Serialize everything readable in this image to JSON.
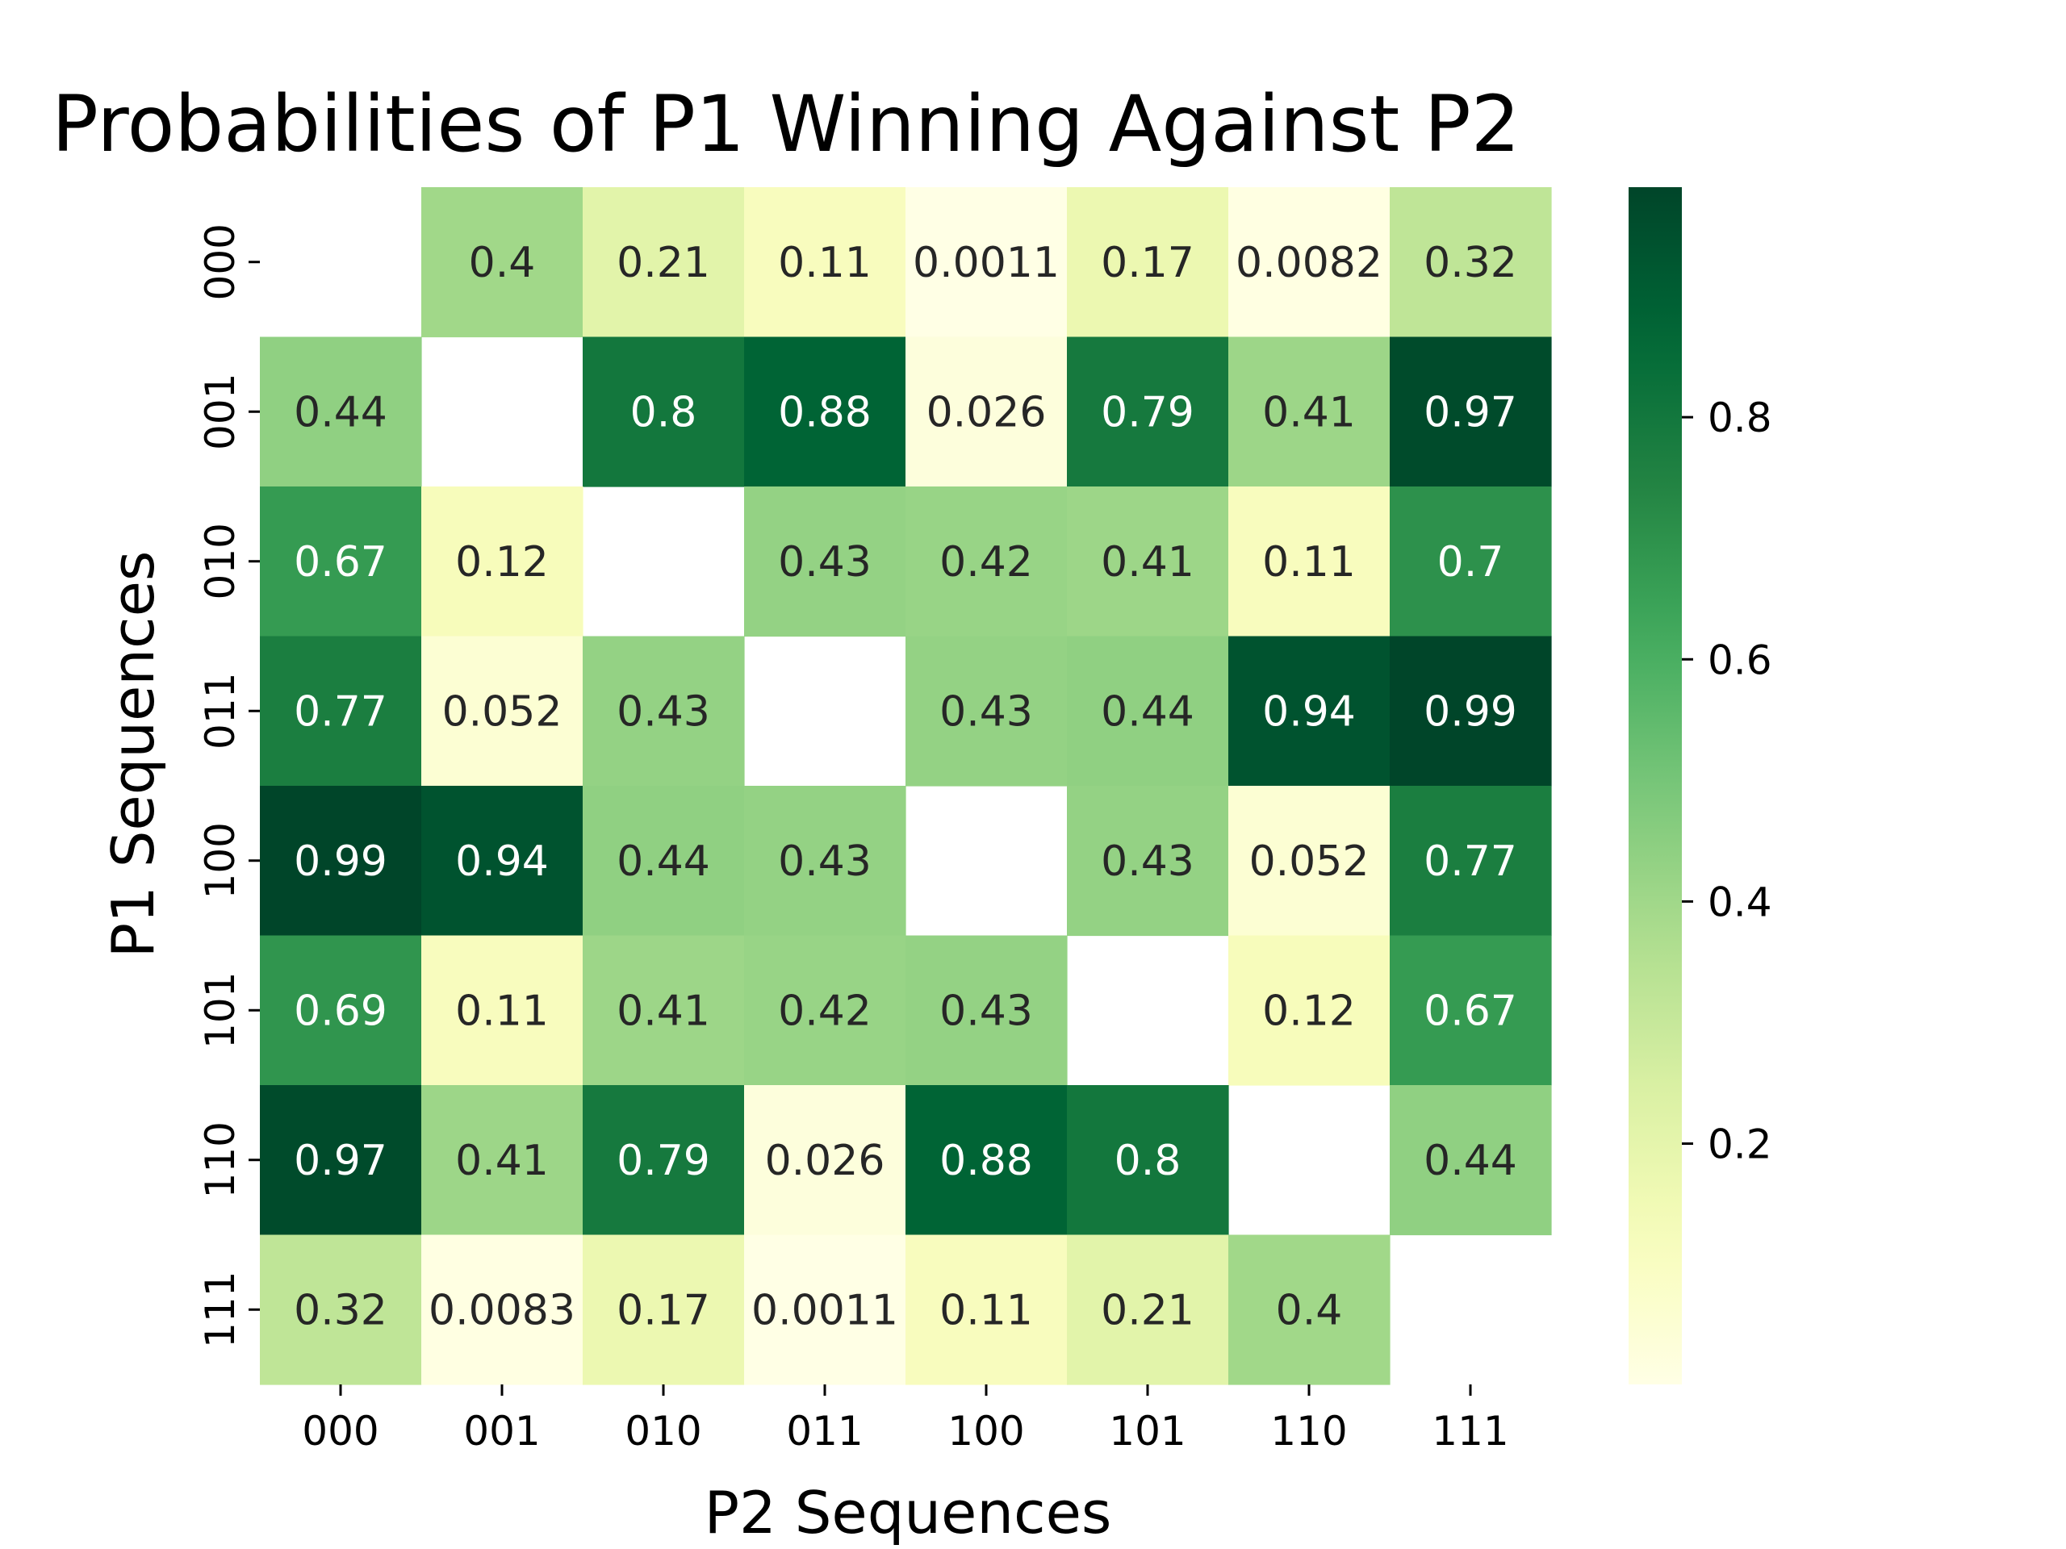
{
  "chart_data": {
    "type": "heatmap",
    "title": "Probabilities of P1 Winning Against P2",
    "xlabel": "P2 Sequences",
    "ylabel": "P1 Sequences",
    "x_categories": [
      "000",
      "001",
      "010",
      "011",
      "100",
      "101",
      "110",
      "111"
    ],
    "y_categories": [
      "000",
      "001",
      "010",
      "011",
      "100",
      "101",
      "110",
      "111"
    ],
    "values": [
      [
        null,
        0.4,
        0.21,
        0.11,
        0.0011,
        0.17,
        0.0082,
        0.32
      ],
      [
        0.44,
        null,
        0.8,
        0.88,
        0.026,
        0.79,
        0.41,
        0.97
      ],
      [
        0.67,
        0.12,
        null,
        0.43,
        0.42,
        0.41,
        0.11,
        0.7
      ],
      [
        0.77,
        0.052,
        0.43,
        null,
        0.43,
        0.44,
        0.94,
        0.99
      ],
      [
        0.99,
        0.94,
        0.44,
        0.43,
        null,
        0.43,
        0.052,
        0.77
      ],
      [
        0.69,
        0.11,
        0.41,
        0.42,
        0.43,
        null,
        0.12,
        0.67
      ],
      [
        0.97,
        0.41,
        0.79,
        0.026,
        0.88,
        0.8,
        null,
        0.44
      ],
      [
        0.32,
        0.0083,
        0.17,
        0.0011,
        0.11,
        0.21,
        0.4,
        null
      ]
    ],
    "value_labels": [
      [
        "",
        "0.4",
        "0.21",
        "0.11",
        "0.0011",
        "0.17",
        "0.0082",
        "0.32"
      ],
      [
        "0.44",
        "",
        "0.8",
        "0.88",
        "0.026",
        "0.79",
        "0.41",
        "0.97"
      ],
      [
        "0.67",
        "0.12",
        "",
        "0.43",
        "0.42",
        "0.41",
        "0.11",
        "0.7"
      ],
      [
        "0.77",
        "0.052",
        "0.43",
        "",
        "0.43",
        "0.44",
        "0.94",
        "0.99"
      ],
      [
        "0.99",
        "0.94",
        "0.44",
        "0.43",
        "",
        "0.43",
        "0.052",
        "0.77"
      ],
      [
        "0.69",
        "0.11",
        "0.41",
        "0.42",
        "0.43",
        "",
        "0.12",
        "0.67"
      ],
      [
        "0.97",
        "0.41",
        "0.79",
        "0.026",
        "0.88",
        "0.8",
        "",
        "0.44"
      ],
      [
        "0.32",
        "0.0083",
        "0.17",
        "0.0011",
        "0.11",
        "0.21",
        "0.4",
        ""
      ]
    ],
    "colormap": "YlGn",
    "color_range": [
      0.0011,
      0.99
    ],
    "colorbar_ticks": [
      0.8,
      0.6,
      0.4,
      0.2
    ],
    "colorbar_tick_labels": [
      "0.8",
      "0.6",
      "0.4",
      "0.2"
    ],
    "grid": false,
    "legend": "colorbar-right"
  }
}
